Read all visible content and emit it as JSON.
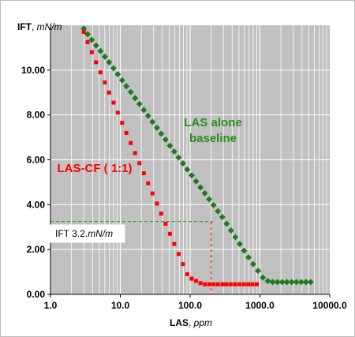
{
  "chart_data": {
    "type": "scatter",
    "xscale": "log",
    "xlim": [
      1,
      10000
    ],
    "ylim": [
      0,
      12
    ],
    "grid": true,
    "ylabel_bold": "IFT",
    "ylabel_sep": ", ",
    "ylabel_unit": "mN/m",
    "xlabel_bold": "LAS",
    "xlabel_sep": ", ",
    "xlabel_unit": "ppm",
    "yticks": [
      0,
      2,
      4,
      6,
      8,
      10
    ],
    "ytick_labels": [
      "0.00",
      "2.00",
      "4.00",
      "6.00",
      "8.00",
      "10.00"
    ],
    "xticks": [
      1,
      10,
      100,
      1000,
      10000
    ],
    "xtick_labels": [
      "1.0",
      "10.0",
      "100.0",
      "1000.0",
      "10000.0"
    ],
    "series": [
      {
        "name": "LAS alone baseline",
        "color": "#1f7a1f",
        "marker": "diamond",
        "x": [
          3.0,
          3.4,
          3.9,
          4.5,
          5.2,
          6.0,
          6.9,
          8.0,
          9.2,
          10.6,
          12.2,
          14.1,
          16.3,
          18.8,
          21.7,
          25.0,
          28.9,
          33.4,
          38.5,
          44.5,
          51.3,
          59.2,
          68.4,
          79.0,
          91.2,
          105.3,
          121.6,
          140.5,
          162.2,
          187.4,
          216.4,
          250.0,
          288.7,
          333.4,
          385.0,
          444.6,
          513.5,
          593.0,
          684.8,
          800,
          940,
          1100,
          1300,
          1520,
          1780,
          2080,
          2430,
          2850,
          3330,
          3900,
          4560,
          5330
        ],
        "y": [
          11.85,
          11.6,
          11.35,
          11.1,
          10.85,
          10.6,
          10.35,
          10.08,
          9.82,
          9.55,
          9.28,
          9.02,
          8.75,
          8.49,
          8.22,
          7.96,
          7.69,
          7.43,
          7.16,
          6.9,
          6.63,
          6.37,
          6.1,
          5.84,
          5.57,
          5.31,
          5.04,
          4.77,
          4.51,
          4.24,
          3.98,
          3.71,
          3.45,
          3.15,
          2.85,
          2.55,
          2.25,
          1.95,
          1.65,
          1.35,
          1.05,
          0.75,
          0.6,
          0.55,
          0.55,
          0.55,
          0.55,
          0.55,
          0.55,
          0.55,
          0.55,
          0.55
        ]
      },
      {
        "name": "LAS-CF ( 1:1)",
        "color": "#ff0000",
        "marker": "square",
        "x": [
          3.0,
          3.4,
          3.9,
          4.5,
          5.2,
          6.0,
          6.9,
          8.0,
          9.2,
          10.6,
          12.2,
          14.1,
          16.3,
          18.8,
          21.7,
          25.0,
          28.9,
          33.4,
          38.5,
          44.5,
          51.3,
          59.2,
          68.4,
          79.0,
          91.2,
          105.3,
          121.6,
          140.5,
          162.2,
          187.4,
          216.4,
          250,
          290,
          330,
          380,
          440,
          510,
          590,
          680,
          780,
          900
        ],
        "y": [
          11.7,
          11.25,
          10.8,
          10.35,
          9.9,
          9.45,
          9.0,
          8.55,
          8.1,
          7.65,
          7.2,
          6.75,
          6.3,
          5.85,
          5.4,
          4.95,
          4.5,
          4.05,
          3.6,
          3.15,
          2.7,
          2.25,
          1.8,
          1.35,
          0.9,
          0.7,
          0.6,
          0.5,
          0.45,
          0.45,
          0.45,
          0.45,
          0.45,
          0.45,
          0.45,
          0.45,
          0.45,
          0.45,
          0.45,
          0.45,
          0.45
        ]
      }
    ],
    "annotations": {
      "green_line1": "LAS alone",
      "green_line2": "baseline",
      "red_label": "LAS-CF ( 1:1)",
      "ift_prefix": "IFT ",
      "ift_value": "3.2.",
      "ift_unit": "mN/m"
    },
    "reference_point": {
      "x": 200,
      "y": 3.25
    }
  }
}
